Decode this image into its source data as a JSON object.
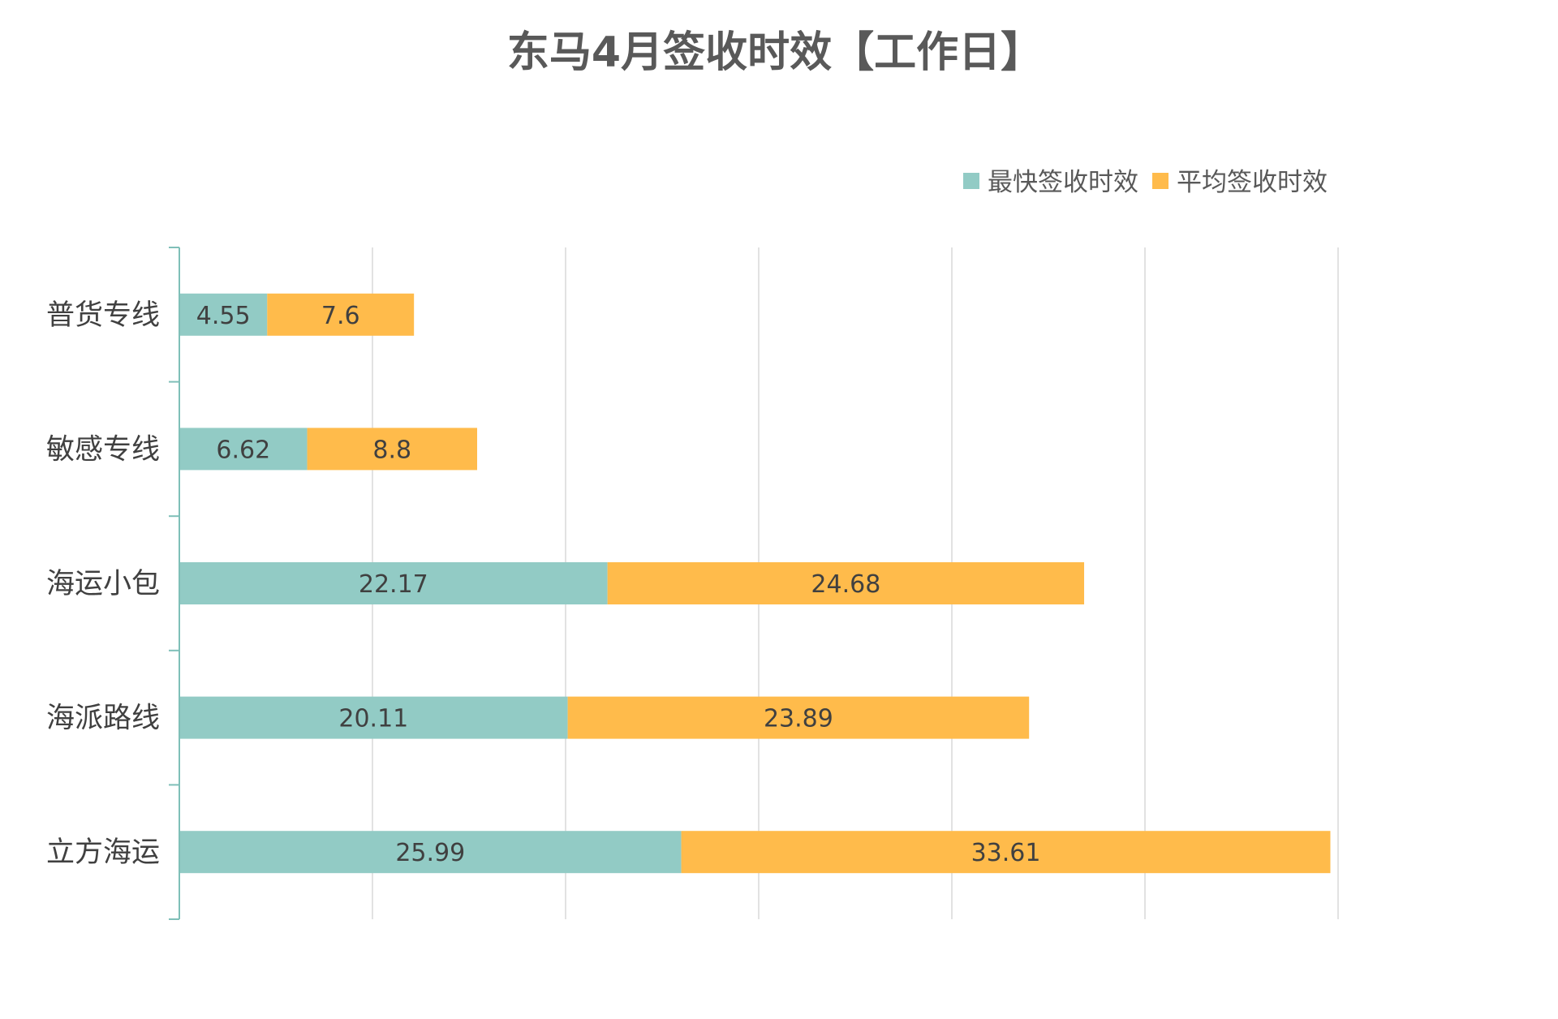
{
  "chart_data": {
    "type": "bar",
    "orientation": "horizontal",
    "stacked": true,
    "title": "东马4月签收时效【工作日】",
    "xlabel": "",
    "ylabel": "",
    "xlim": [
      0,
      60
    ],
    "grid": true,
    "legend_position": "top-right",
    "categories": [
      "普货专线",
      "敏感专线",
      "海运小包",
      "海派路线",
      "立方海运"
    ],
    "series": [
      {
        "name": "最快签收时效",
        "color": "#92CBC5",
        "values": [
          4.55,
          6.62,
          22.17,
          20.11,
          25.99
        ],
        "labels": [
          "4.55",
          "6.62",
          "22.17",
          "20.11",
          "25.99"
        ]
      },
      {
        "name": "平均签收时效",
        "color": "#FFBB4B",
        "values": [
          7.6,
          8.8,
          24.68,
          23.89,
          33.61
        ],
        "labels": [
          "7.6",
          "8.8",
          "24.68",
          "23.89",
          "33.61"
        ]
      }
    ]
  },
  "colors": {
    "title": "#595959",
    "axis": "#7FBFB8",
    "grid": "#D9D9D9",
    "category_text": "#404040",
    "value_text": "#404040",
    "legend_text": "#595959"
  }
}
